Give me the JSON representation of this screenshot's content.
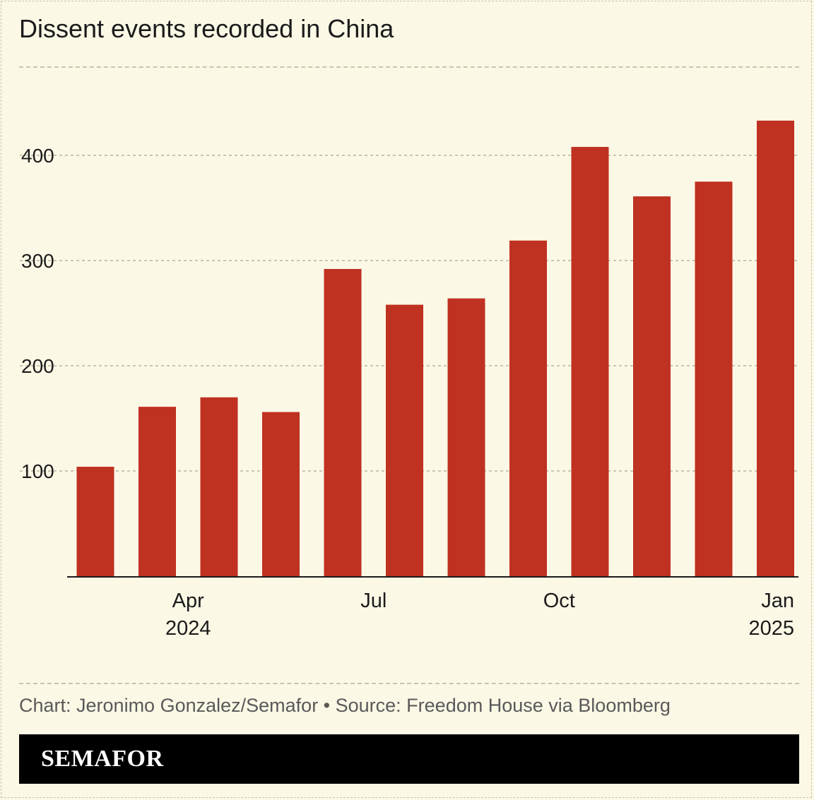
{
  "chart_data": {
    "type": "bar",
    "title": "Dissent events recorded in China",
    "categories": [
      "Feb 2024",
      "Mar 2024",
      "Apr 2024",
      "May 2024",
      "Jun 2024",
      "Jul 2024",
      "Aug 2024",
      "Sep 2024",
      "Oct 2024",
      "Nov 2024",
      "Dec 2024",
      "Jan 2025"
    ],
    "values": [
      104,
      161,
      170,
      156,
      292,
      258,
      264,
      319,
      408,
      361,
      375,
      433
    ],
    "x_tick_labels": [
      {
        "category": "Apr 2024",
        "line1": "Apr",
        "line2": "2024"
      },
      {
        "category": "Jul 2024",
        "line1": "Jul",
        "line2": ""
      },
      {
        "category": "Oct 2024",
        "line1": "Oct",
        "line2": ""
      },
      {
        "category": "Jan 2025",
        "line1": "Jan",
        "line2": "2025"
      }
    ],
    "y_ticks": [
      100,
      200,
      300,
      400
    ],
    "ylim": [
      0,
      450
    ],
    "xlabel": "",
    "ylabel": "",
    "grid": true,
    "bar_color": "#bf3121"
  },
  "footer": {
    "credit": "Chart: Jeronimo Gonzalez/Semafor • Source: Freedom House via Bloomberg",
    "brand": "SEMAFOR"
  }
}
